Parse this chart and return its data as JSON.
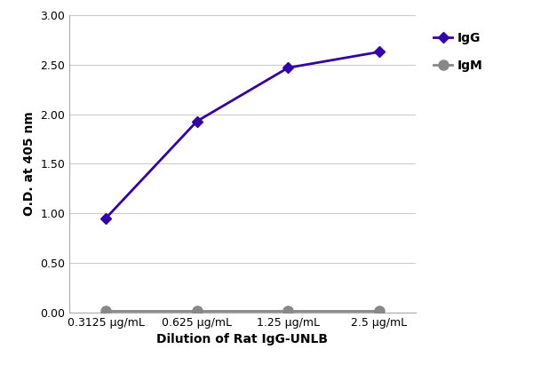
{
  "x_labels": [
    "0.3125 μg/mL",
    "0.625 μg/mL",
    "1.25 μg/mL",
    "2.5 μg/mL"
  ],
  "x_positions": [
    0,
    1,
    2,
    3
  ],
  "IgG_values": [
    0.95,
    1.93,
    2.47,
    2.63
  ],
  "IgM_values": [
    0.02,
    0.02,
    0.02,
    0.02
  ],
  "IgG_color": "#3300AA",
  "IgM_color": "#888888",
  "IgG_label": "IgG",
  "IgM_label": "IgM",
  "xlabel": "Dilution of Rat IgG-UNLB",
  "ylabel": "O.D. at 405 nm",
  "ylim": [
    0.0,
    3.0
  ],
  "yticks": [
    0.0,
    0.5,
    1.0,
    1.5,
    2.0,
    2.5,
    3.0
  ],
  "grid_color": "#cccccc",
  "background_color": "#ffffff",
  "IgG_marker_size": 6,
  "IgM_marker_size": 8,
  "line_width": 2.0,
  "axis_label_fontsize": 10,
  "tick_fontsize": 9,
  "legend_fontsize": 10
}
